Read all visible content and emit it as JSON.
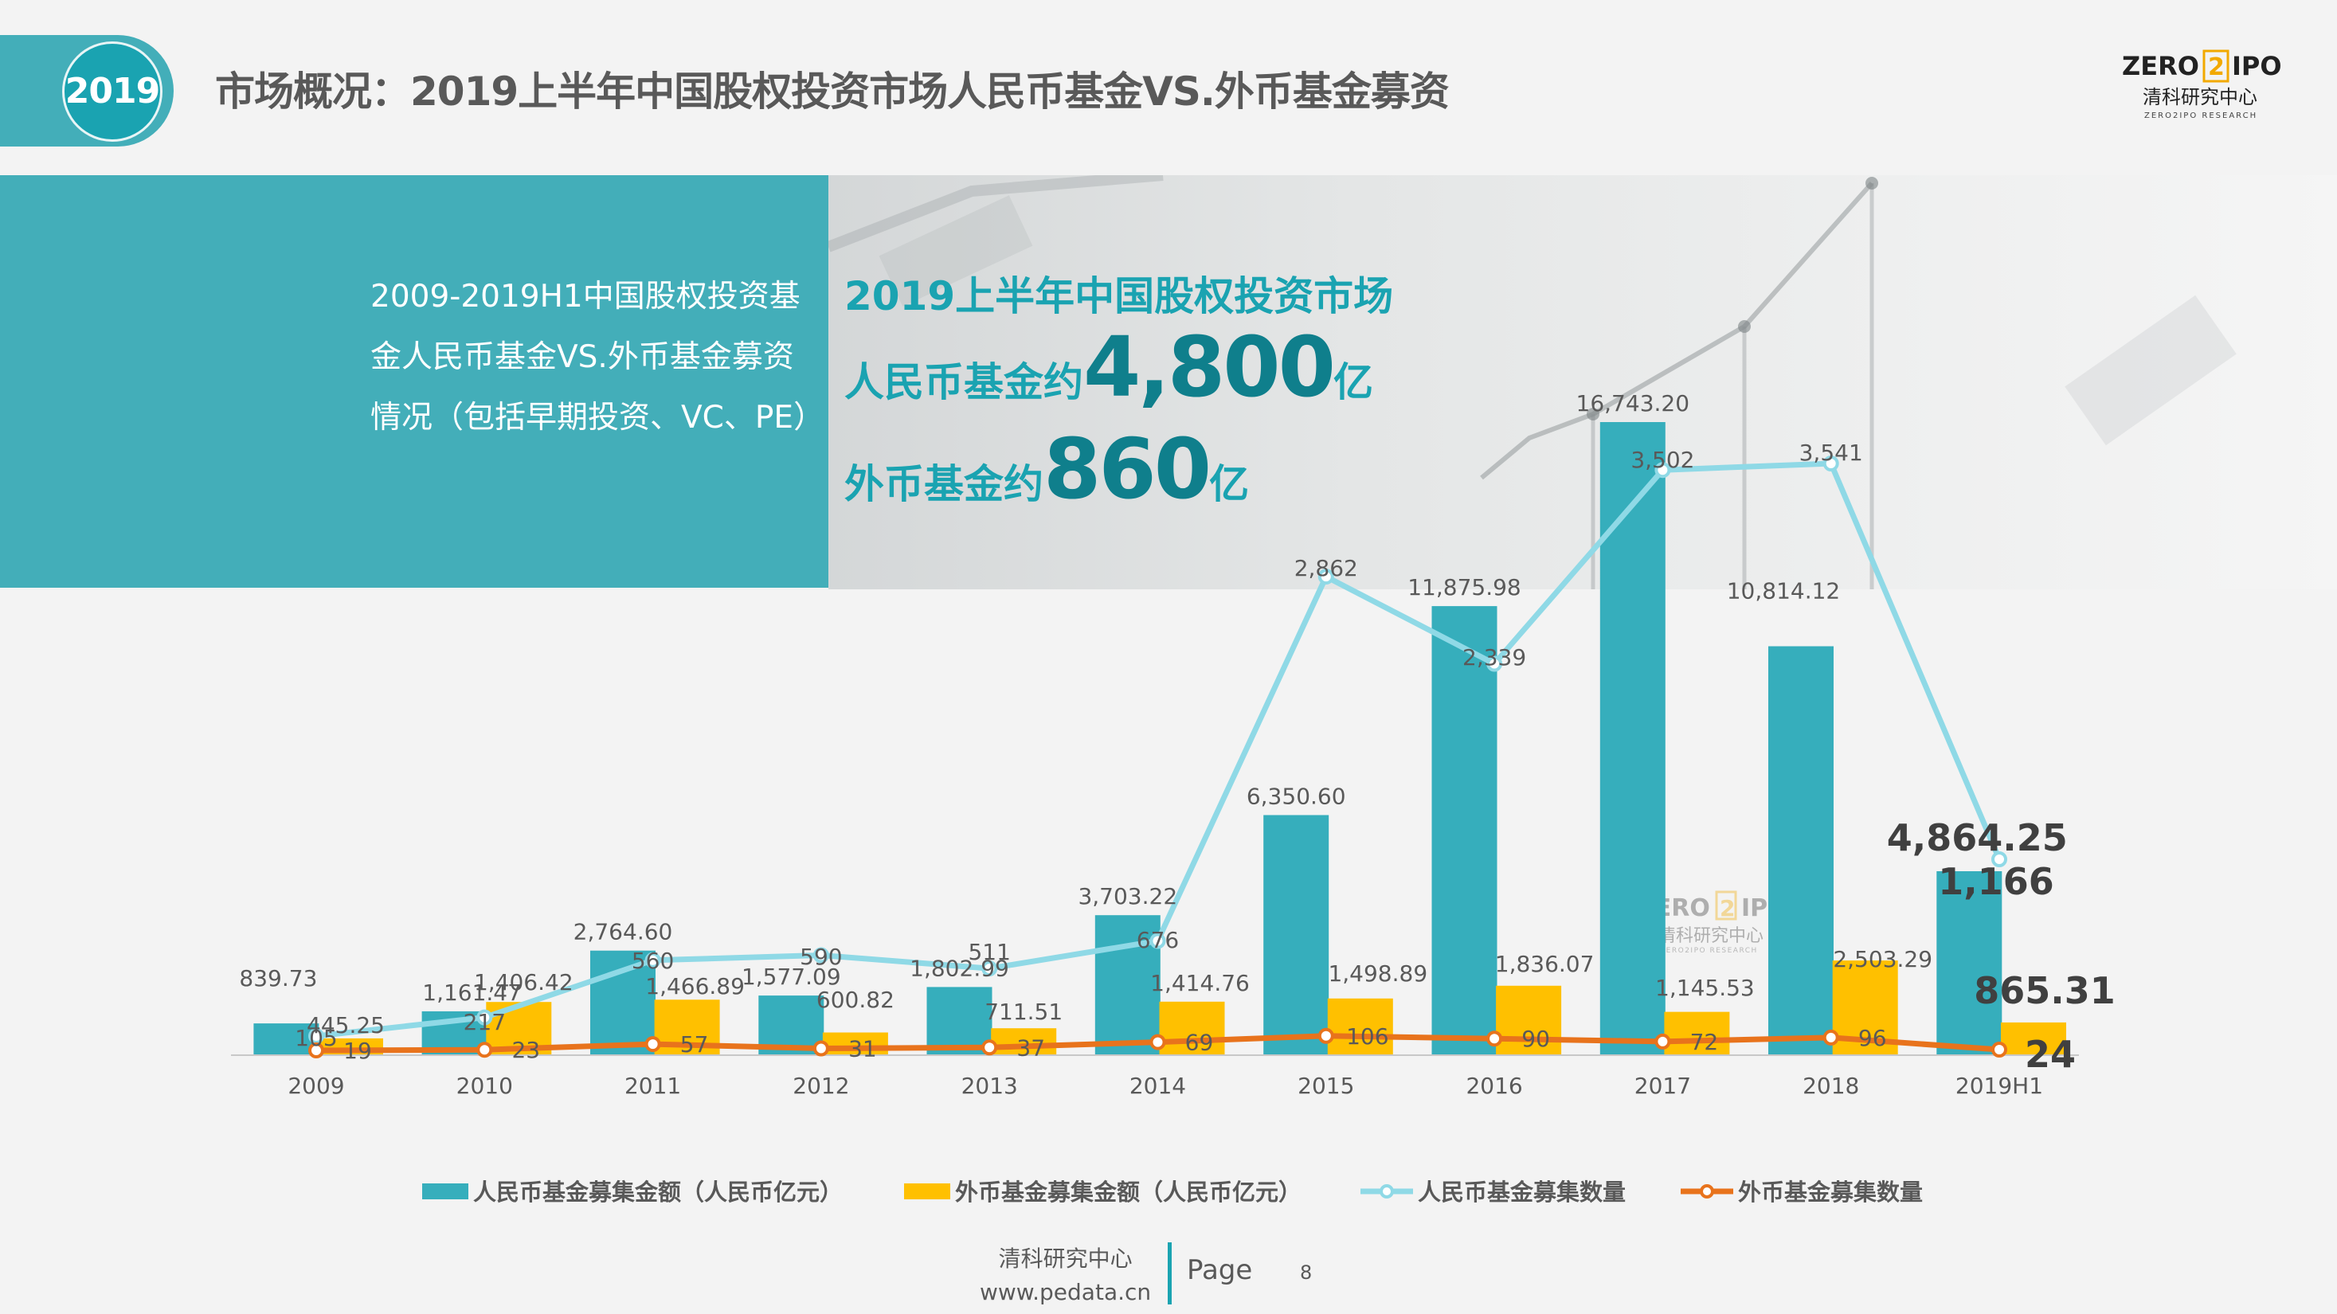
{
  "header": {
    "year_badge": "2019",
    "title": "市场概况：2019上半年中国股权投资市场人民币基金VS.外币基金募资"
  },
  "logo": {
    "brand_left": "ZERO",
    "brand_mid": "2",
    "brand_right": "IPO",
    "cn_name": "清科研究中心",
    "en_name": "ZERO2IPO RESEARCH"
  },
  "banner": {
    "description": "2009-2019H1中国股权投资基金人民币基金VS.外币基金募资情况（包括早期投资、VC、PE）",
    "headline": "2019上半年中国股权投资市场",
    "rmb_prefix": "人民币基金约",
    "rmb_value": "4,800",
    "rmb_unit": "亿",
    "usd_prefix": "外币基金约",
    "usd_value": "860",
    "usd_unit": "亿"
  },
  "footer": {
    "org": "清科研究中心",
    "url": "www.pedata.cn",
    "page_label": "Page",
    "page_number": "8"
  },
  "colors": {
    "teal": "#43aeb9",
    "teal_dark": "#1aa3b1",
    "bar_rmb": "#36aebc",
    "bar_usd": "#ffc000",
    "line_rmb": "#8fd9e6",
    "line_usd": "#e8731c"
  },
  "chart_data": {
    "type": "bar",
    "categories": [
      "2009",
      "2010",
      "2011",
      "2012",
      "2013",
      "2014",
      "2015",
      "2016",
      "2017",
      "2018",
      "2019H1"
    ],
    "series": [
      {
        "name": "人民币基金募集金额（人民币亿元）",
        "kind": "bar",
        "color": "#36aebc",
        "values": [
          839.73,
          1161.47,
          2764.6,
          1577.09,
          1802.99,
          3703.22,
          6350.6,
          11875.98,
          16743.2,
          10814.12,
          4864.25
        ],
        "labels": [
          "839.73",
          "1,161.47",
          "2,764.60",
          "1,577.09",
          "1,802.99",
          "3,703.22",
          "6,350.60",
          "11,875.98",
          "16,743.20",
          "10,814.12",
          "4,864.25"
        ]
      },
      {
        "name": "外币基金募集金额（人民币亿元）",
        "kind": "bar",
        "color": "#ffc000",
        "values": [
          445.25,
          1406.42,
          1466.89,
          600.82,
          711.51,
          1414.76,
          1498.89,
          1836.07,
          1145.53,
          2503.29,
          865.31
        ],
        "labels": [
          "445.25",
          "1,406.42",
          "1,466.89",
          "600.82",
          "711.51",
          "1,414.76",
          "1,498.89",
          "1,836.07",
          "1,145.53",
          "2,503.29",
          "865.31"
        ]
      },
      {
        "name": "人民币基金募集数量",
        "kind": "line",
        "color": "#8fd9e6",
        "values": [
          105,
          217,
          560,
          590,
          511,
          676,
          2862,
          2339,
          3502,
          3541,
          1166
        ],
        "labels": [
          "105",
          "217",
          "560",
          "590",
          "511",
          "676",
          "2,862",
          "2,339",
          "3,502",
          "3,541",
          "1,166"
        ]
      },
      {
        "name": "外币基金募集数量",
        "kind": "line",
        "color": "#e8731c",
        "values": [
          19,
          23,
          57,
          31,
          37,
          69,
          106,
          90,
          72,
          96,
          24
        ],
        "labels": [
          "19",
          "23",
          "57",
          "31",
          "37",
          "69",
          "106",
          "90",
          "72",
          "96",
          "24"
        ]
      }
    ],
    "legend_position": "bottom",
    "grid": false
  }
}
